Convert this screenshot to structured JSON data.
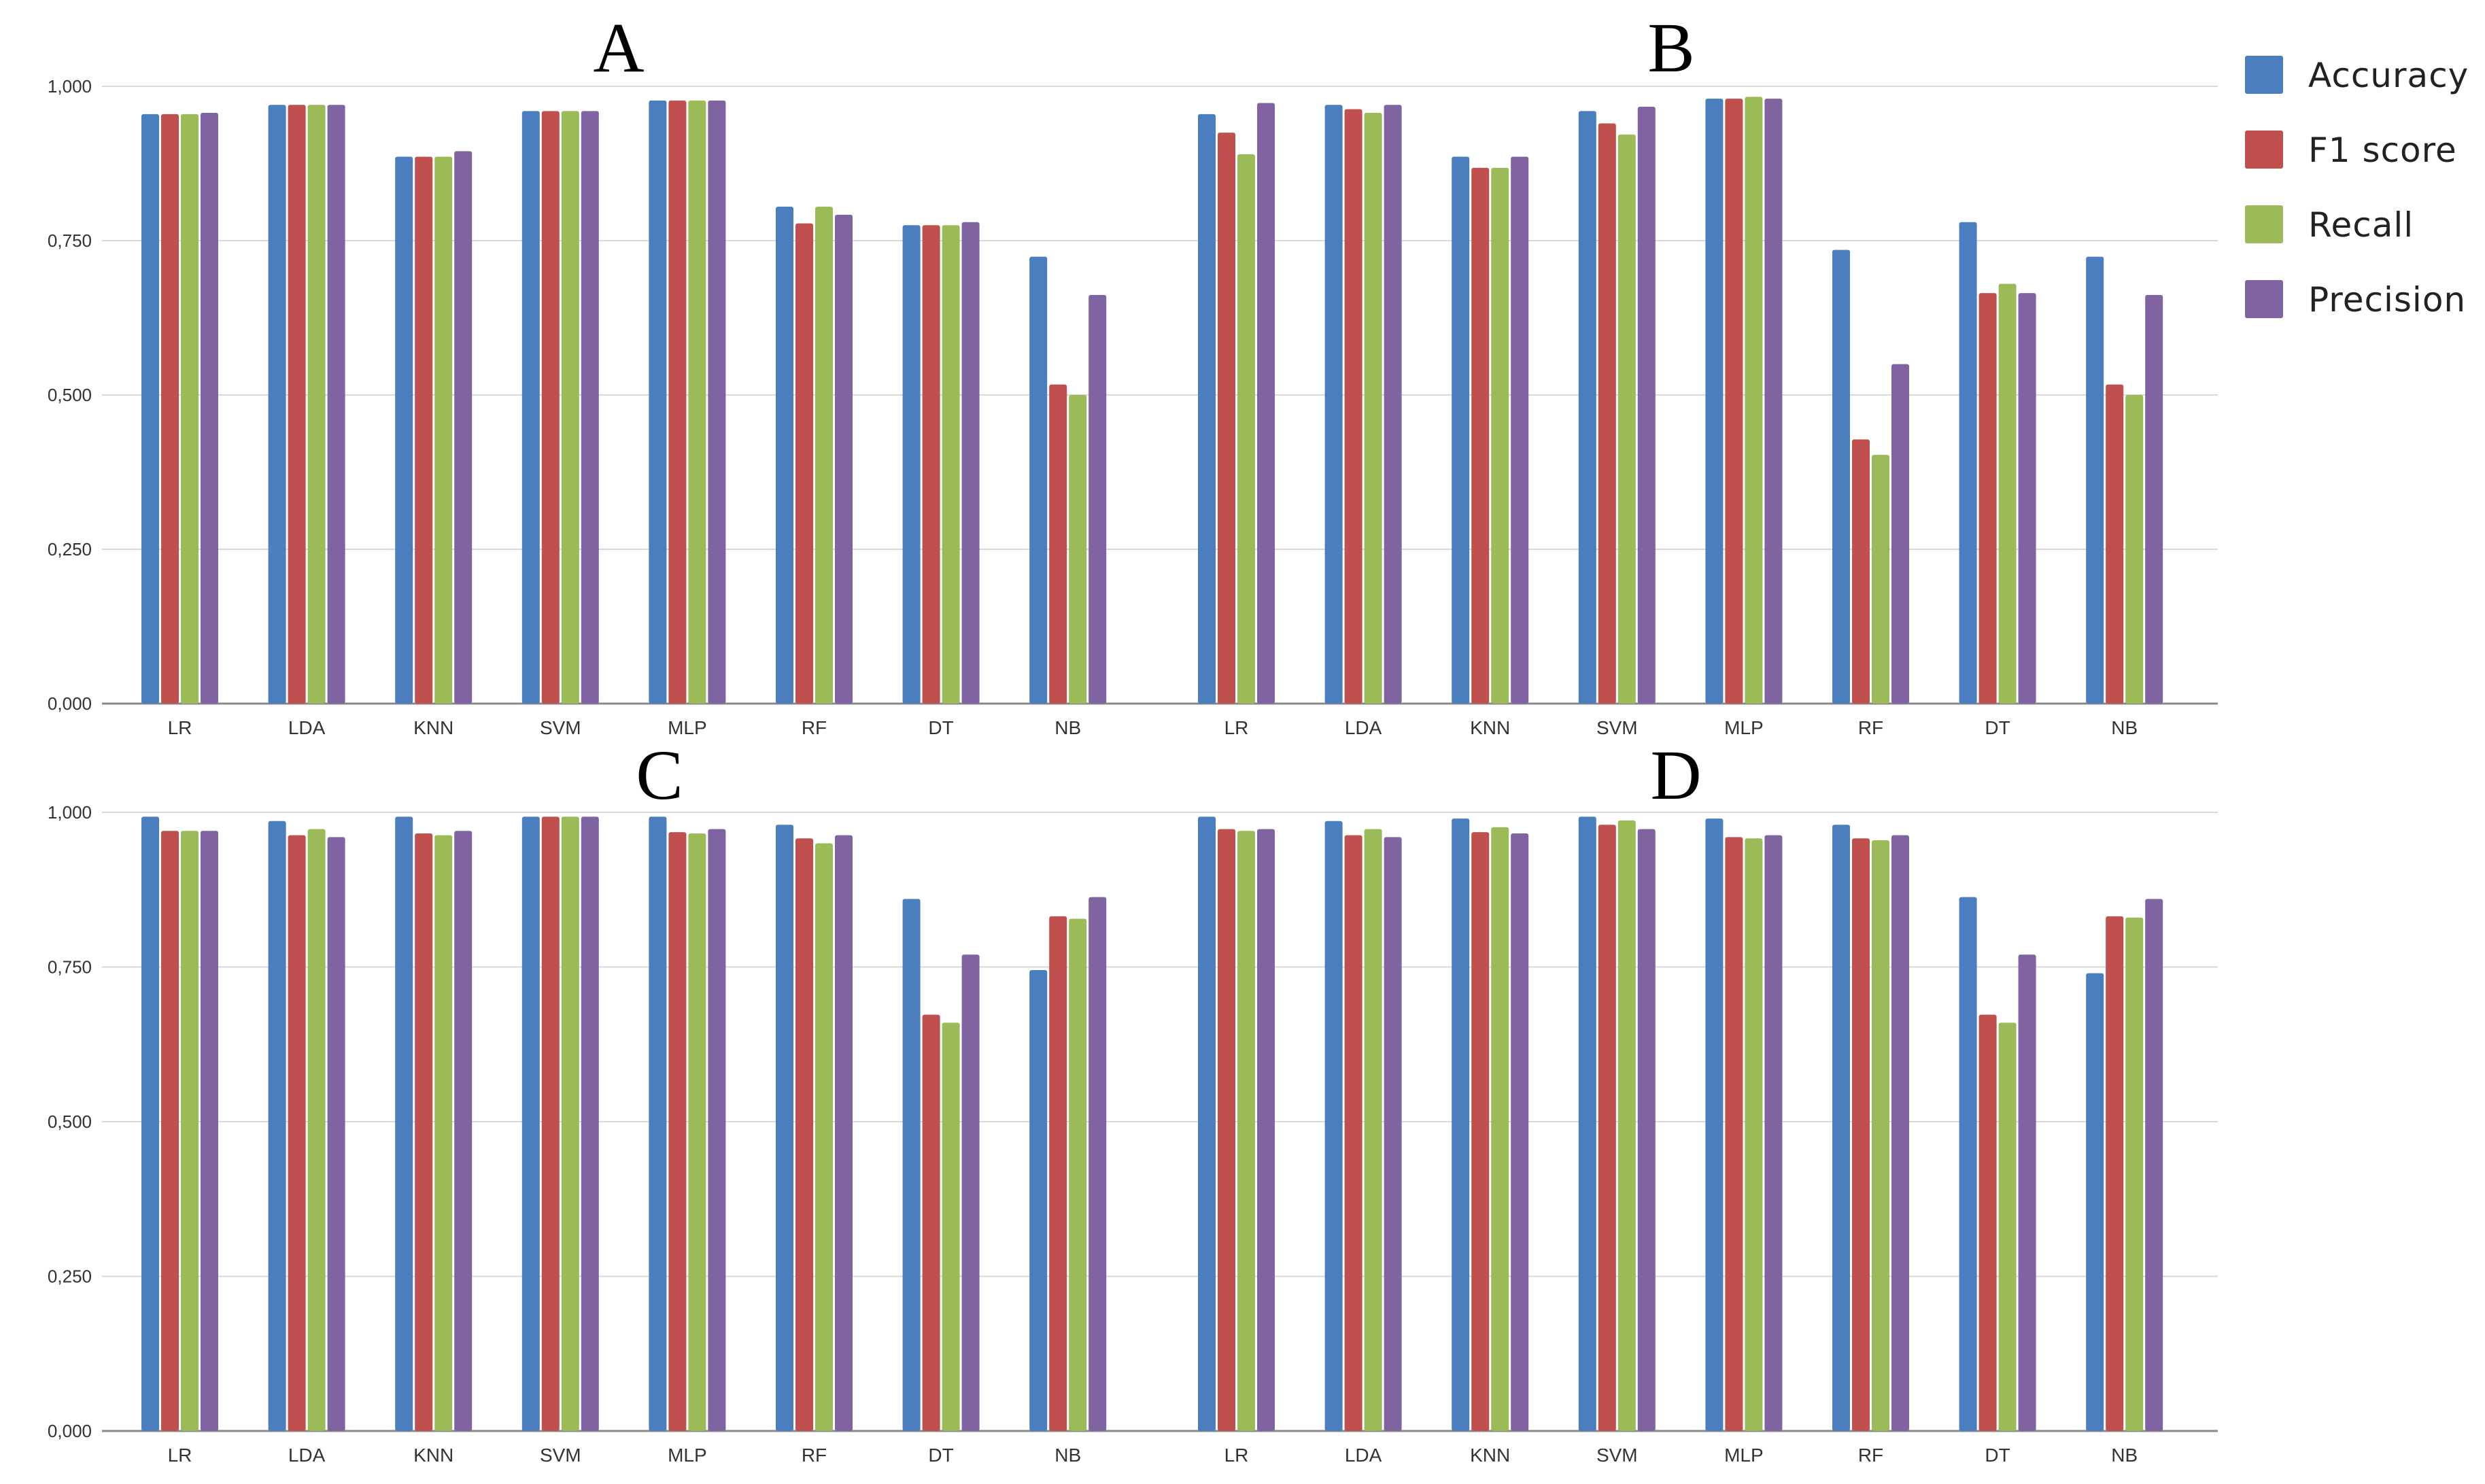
{
  "legend": [
    {
      "name": "Accuracy",
      "color": "#4a7ebf"
    },
    {
      "name": "F1 score",
      "color": "#c0504d"
    },
    {
      "name": "Recall",
      "color": "#9bbb59"
    },
    {
      "name": "Precision",
      "color": "#8064a2"
    }
  ],
  "chart_data": [
    {
      "type": "bar",
      "title": "A",
      "ylim": [
        0,
        1
      ],
      "yticks": [
        "0,000",
        "0,250",
        "0,500",
        "0,750",
        "1,000"
      ],
      "grid": true,
      "legend_position": "right",
      "groups": [
        {
          "categories": [
            "LR",
            "LDA",
            "KNN",
            "SVM",
            "MLP",
            "RF",
            "DT",
            "NB"
          ],
          "series": [
            {
              "name": "Accuracy",
              "values": [
                0.955,
                0.97,
                0.886,
                0.96,
                0.977,
                0.805,
                0.775,
                0.724
              ]
            },
            {
              "name": "F1 score",
              "values": [
                0.955,
                0.97,
                0.886,
                0.96,
                0.977,
                0.778,
                0.775,
                0.517
              ]
            },
            {
              "name": "Recall",
              "values": [
                0.955,
                0.97,
                0.886,
                0.96,
                0.977,
                0.805,
                0.775,
                0.5
              ]
            },
            {
              "name": "Precision",
              "values": [
                0.957,
                0.97,
                0.895,
                0.96,
                0.977,
                0.792,
                0.78,
                0.662
              ]
            }
          ]
        },
        {
          "categories": [
            "LR",
            "LDA",
            "KNN",
            "SVM",
            "MLP",
            "RF",
            "DT",
            "NB"
          ],
          "series": [
            {
              "name": "Accuracy",
              "values": [
                0.955,
                0.97,
                0.886,
                0.96,
                0.98,
                0.735,
                0.78,
                0.724
              ]
            },
            {
              "name": "F1 score",
              "values": [
                0.925,
                0.963,
                0.868,
                0.94,
                0.98,
                0.428,
                0.665,
                0.517
              ]
            },
            {
              "name": "Recall",
              "values": [
                0.89,
                0.957,
                0.868,
                0.922,
                0.983,
                0.403,
                0.68,
                0.5
              ]
            },
            {
              "name": "Precision",
              "values": [
                0.973,
                0.97,
                0.886,
                0.967,
                0.98,
                0.55,
                0.665,
                0.662
              ]
            }
          ]
        }
      ]
    },
    {
      "type": "bar",
      "title": "B",
      "ylim": [
        0,
        1
      ],
      "groups": []
    },
    {
      "type": "bar",
      "title": "C",
      "ylim": [
        0,
        1
      ],
      "yticks": [
        "0,000",
        "0,250",
        "0,500",
        "0,750",
        "1,000"
      ],
      "grid": true,
      "groups": [
        {
          "categories": [
            "LR",
            "LDA",
            "KNN",
            "SVM",
            "MLP",
            "RF",
            "DT",
            "NB"
          ],
          "series": [
            {
              "name": "Accuracy",
              "values": [
                0.993,
                0.986,
                0.993,
                0.993,
                0.993,
                0.98,
                0.86,
                0.745
              ]
            },
            {
              "name": "F1 score",
              "values": [
                0.97,
                0.963,
                0.966,
                0.993,
                0.968,
                0.958,
                0.673,
                0.832
              ]
            },
            {
              "name": "Recall",
              "values": [
                0.97,
                0.973,
                0.963,
                0.993,
                0.966,
                0.95,
                0.66,
                0.828
              ]
            },
            {
              "name": "Precision",
              "values": [
                0.97,
                0.96,
                0.97,
                0.993,
                0.973,
                0.963,
                0.77,
                0.863
              ]
            }
          ]
        },
        {
          "categories": [
            "LR",
            "LDA",
            "KNN",
            "SVM",
            "MLP",
            "RF",
            "DT",
            "NB"
          ],
          "series": [
            {
              "name": "Accuracy",
              "values": [
                0.993,
                0.986,
                0.99,
                0.993,
                0.99,
                0.98,
                0.863,
                0.74
              ]
            },
            {
              "name": "F1 score",
              "values": [
                0.973,
                0.963,
                0.968,
                0.98,
                0.96,
                0.958,
                0.673,
                0.832
              ]
            },
            {
              "name": "Recall",
              "values": [
                0.97,
                0.973,
                0.976,
                0.987,
                0.958,
                0.955,
                0.66,
                0.83
              ]
            },
            {
              "name": "Precision",
              "values": [
                0.973,
                0.96,
                0.966,
                0.973,
                0.963,
                0.963,
                0.77,
                0.86
              ]
            }
          ]
        }
      ]
    },
    {
      "type": "bar",
      "title": "D",
      "ylim": [
        0,
        1
      ],
      "groups": []
    }
  ]
}
